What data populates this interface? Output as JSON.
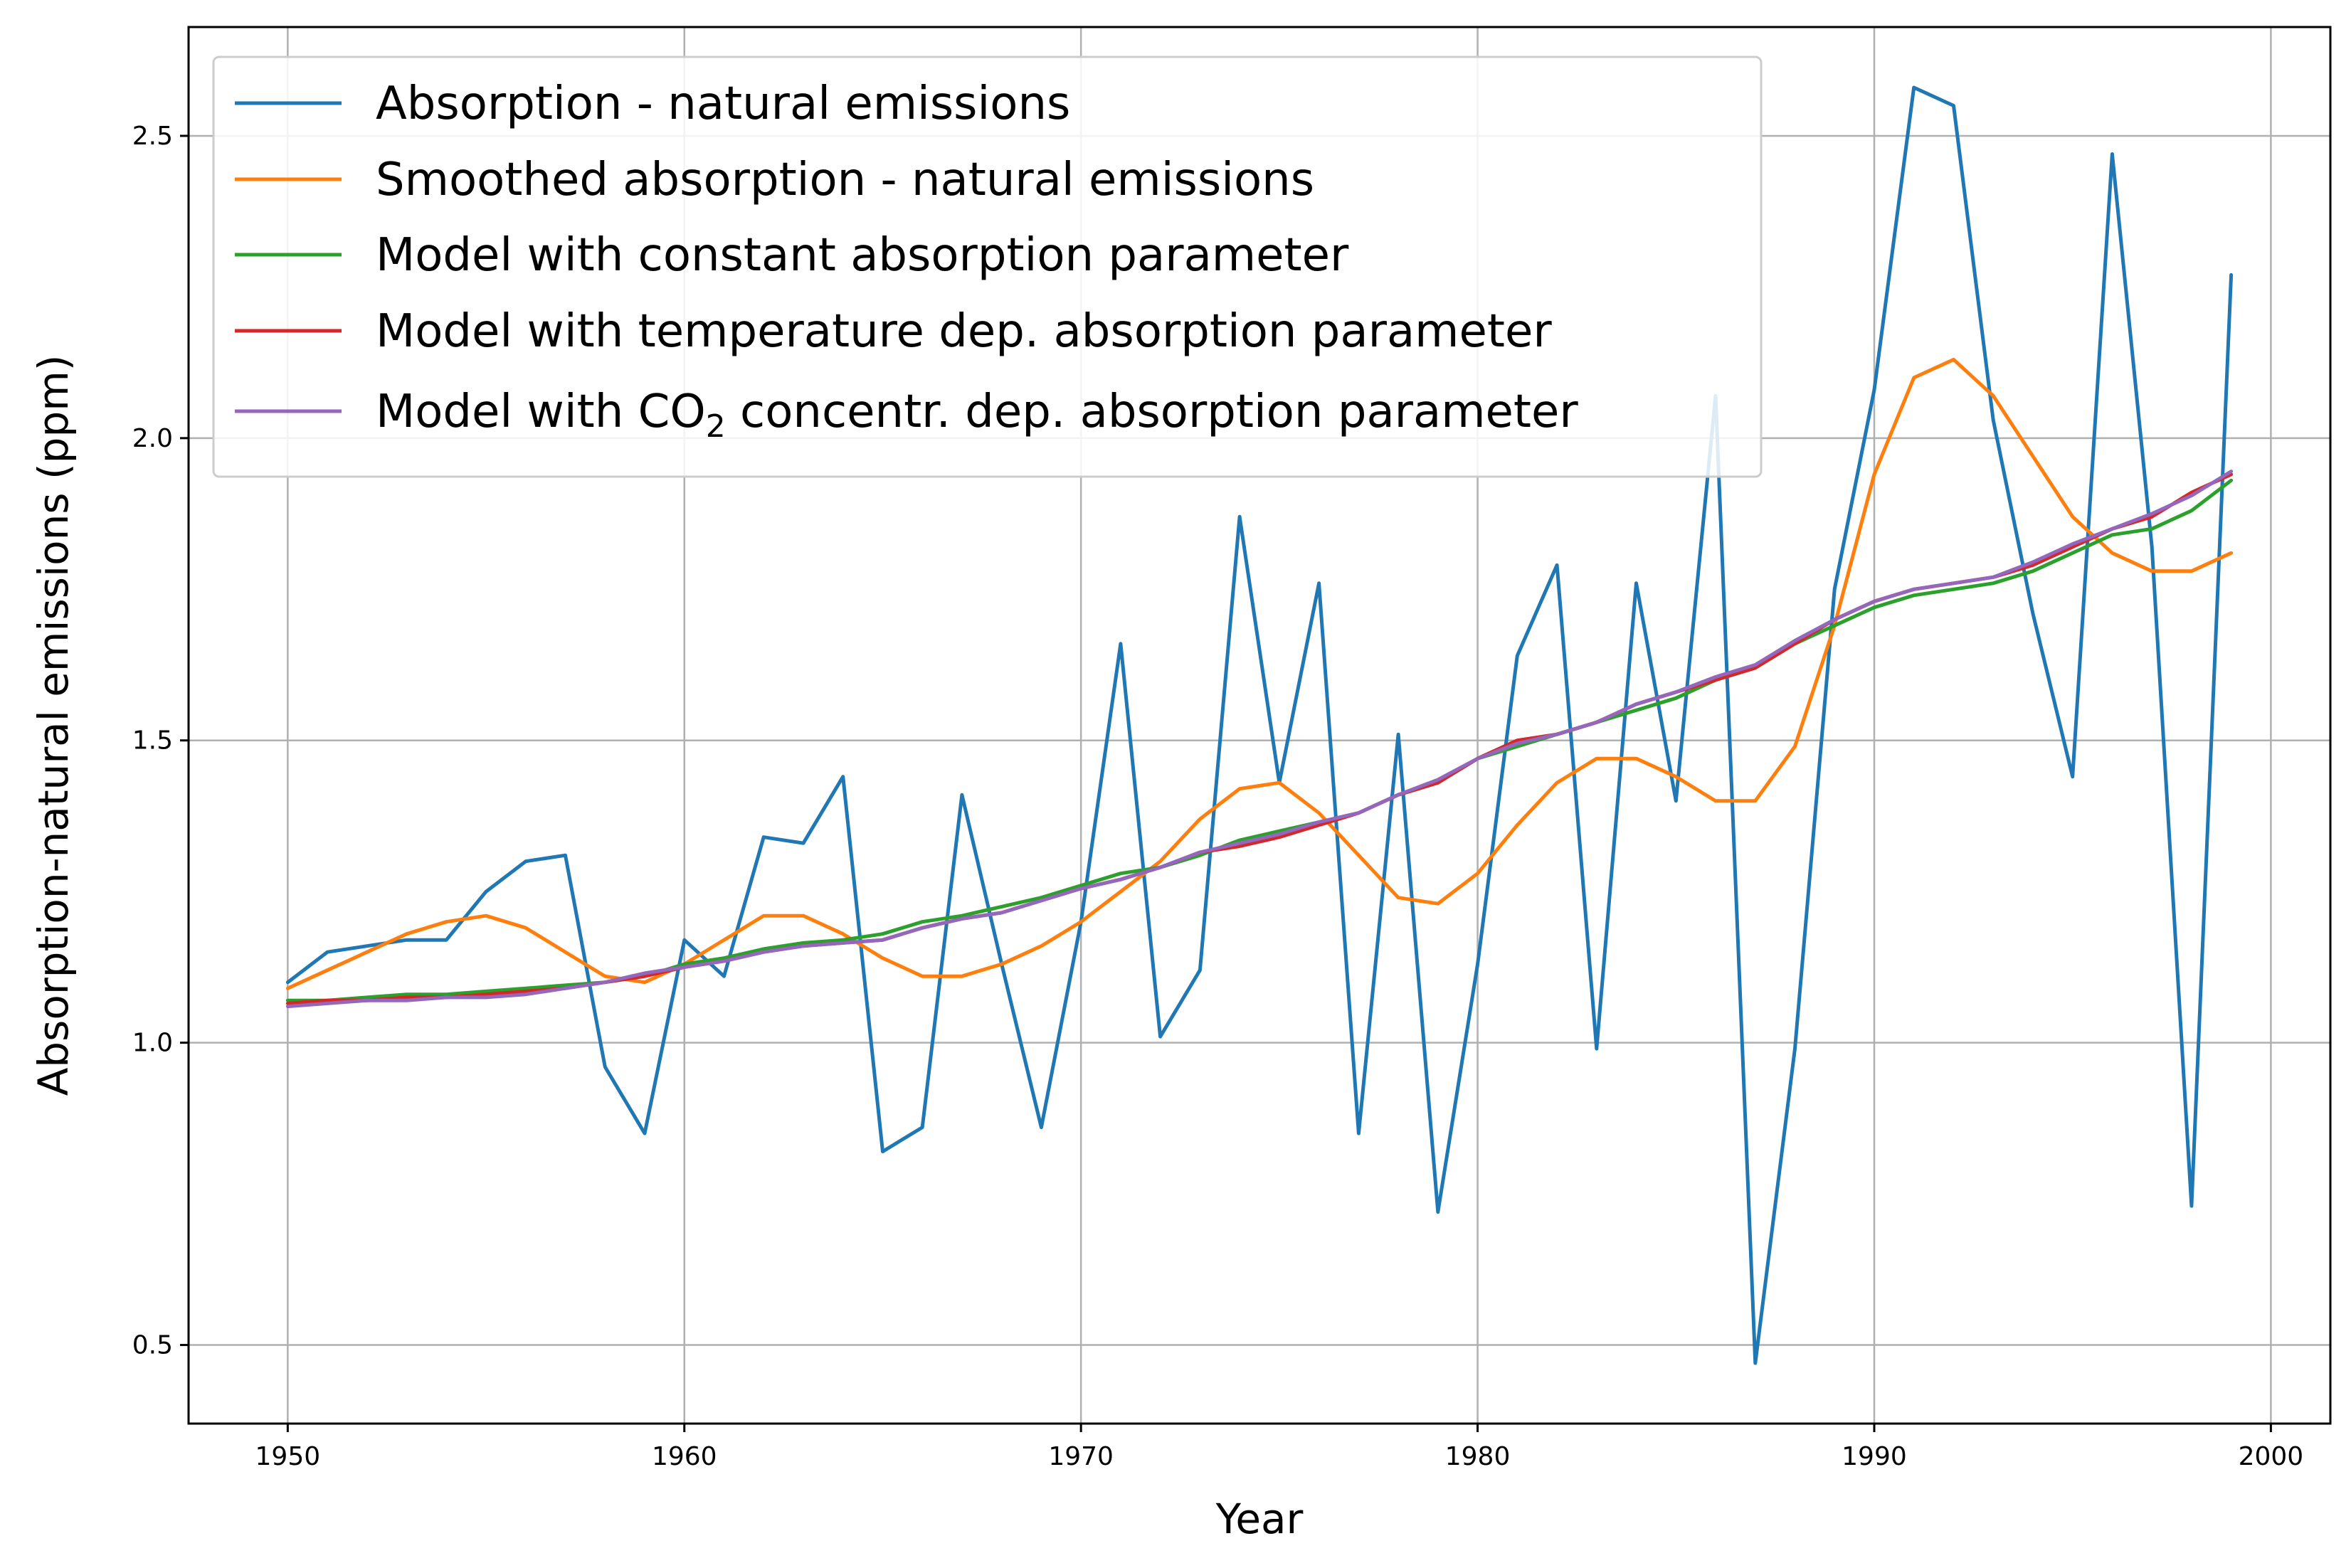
{
  "chart_data": {
    "type": "line",
    "title": "",
    "xlabel": "Year",
    "ylabel": "Absorption-natural emissions (ppm)",
    "xlim": [
      1947.5,
      2001.5
    ],
    "ylim": [
      0.37,
      2.68
    ],
    "grid": true,
    "legend_position": "top-left",
    "xticks": [
      1950,
      1960,
      1970,
      1980,
      1990,
      2000
    ],
    "xtick_labels": [
      "1950",
      "1960",
      "1970",
      "1980",
      "1990",
      "2000"
    ],
    "yticks": [
      0.5,
      1.0,
      1.5,
      2.0,
      2.5
    ],
    "ytick_labels": [
      "0.5",
      "1.0",
      "1.5",
      "2.0",
      "2.5"
    ],
    "x": [
      1950,
      1951,
      1952,
      1953,
      1954,
      1955,
      1956,
      1957,
      1958,
      1959,
      1960,
      1961,
      1962,
      1963,
      1964,
      1965,
      1966,
      1967,
      1968,
      1969,
      1970,
      1971,
      1972,
      1973,
      1974,
      1975,
      1976,
      1977,
      1978,
      1979,
      1980,
      1981,
      1982,
      1983,
      1984,
      1985,
      1986,
      1987,
      1988,
      1989,
      1990,
      1991,
      1992,
      1993,
      1994,
      1995,
      1996,
      1997,
      1998,
      1999
    ],
    "series": [
      {
        "name": "Absorption - natural emissions",
        "color": "#1f77b4",
        "values": [
          1.1,
          1.15,
          1.16,
          1.17,
          1.17,
          1.25,
          1.3,
          1.31,
          0.96,
          0.85,
          1.17,
          1.11,
          1.34,
          1.33,
          1.44,
          0.82,
          0.86,
          1.41,
          1.13,
          0.86,
          1.2,
          1.66,
          1.01,
          1.12,
          1.87,
          1.43,
          1.76,
          0.85,
          1.51,
          0.72,
          1.13,
          1.64,
          1.79,
          0.99,
          1.76,
          1.4,
          2.07,
          0.47,
          0.99,
          1.75,
          2.08,
          2.58,
          2.55,
          2.03,
          1.71,
          1.44,
          2.47,
          1.82,
          0.73,
          2.27
        ]
      },
      {
        "name": "Smoothed absorption - natural emissions",
        "color": "#ff7f0e",
        "values": [
          1.09,
          1.12,
          1.15,
          1.18,
          1.2,
          1.21,
          1.19,
          1.15,
          1.11,
          1.1,
          1.13,
          1.17,
          1.21,
          1.21,
          1.18,
          1.14,
          1.11,
          1.11,
          1.13,
          1.16,
          1.2,
          1.25,
          1.3,
          1.37,
          1.42,
          1.43,
          1.38,
          1.31,
          1.24,
          1.23,
          1.28,
          1.36,
          1.43,
          1.47,
          1.47,
          1.44,
          1.4,
          1.4,
          1.49,
          1.69,
          1.94,
          2.1,
          2.13,
          2.07,
          1.97,
          1.87,
          1.81,
          1.78,
          1.78,
          1.81
        ]
      },
      {
        "name": "Model with constant absorption parameter",
        "color": "#2ca02c",
        "values": [
          1.07,
          1.07,
          1.075,
          1.08,
          1.08,
          1.085,
          1.09,
          1.095,
          1.1,
          1.11,
          1.13,
          1.14,
          1.155,
          1.165,
          1.17,
          1.18,
          1.2,
          1.21,
          1.225,
          1.24,
          1.26,
          1.28,
          1.29,
          1.31,
          1.335,
          1.35,
          1.365,
          1.38,
          1.41,
          1.43,
          1.47,
          1.49,
          1.51,
          1.53,
          1.55,
          1.57,
          1.6,
          1.62,
          1.66,
          1.69,
          1.72,
          1.74,
          1.75,
          1.76,
          1.78,
          1.81,
          1.84,
          1.85,
          1.88,
          1.93
        ]
      },
      {
        "name": "Model with temperature dep. absorption parameter",
        "color": "#d62728",
        "values": [
          1.065,
          1.07,
          1.07,
          1.075,
          1.075,
          1.08,
          1.085,
          1.09,
          1.1,
          1.11,
          1.125,
          1.135,
          1.15,
          1.16,
          1.165,
          1.17,
          1.19,
          1.205,
          1.215,
          1.235,
          1.255,
          1.27,
          1.29,
          1.315,
          1.325,
          1.34,
          1.36,
          1.38,
          1.41,
          1.43,
          1.47,
          1.5,
          1.51,
          1.53,
          1.56,
          1.58,
          1.6,
          1.62,
          1.66,
          1.7,
          1.73,
          1.75,
          1.76,
          1.77,
          1.79,
          1.82,
          1.85,
          1.87,
          1.91,
          1.94
        ]
      },
      {
        "name": "Model with CO₂ concentr. dep. absorption parameter",
        "color": "#9467bd",
        "values": [
          1.06,
          1.065,
          1.07,
          1.07,
          1.075,
          1.075,
          1.08,
          1.09,
          1.1,
          1.115,
          1.125,
          1.135,
          1.15,
          1.16,
          1.165,
          1.17,
          1.19,
          1.205,
          1.215,
          1.235,
          1.255,
          1.27,
          1.29,
          1.315,
          1.33,
          1.345,
          1.365,
          1.38,
          1.41,
          1.435,
          1.47,
          1.495,
          1.51,
          1.53,
          1.56,
          1.58,
          1.605,
          1.625,
          1.665,
          1.7,
          1.73,
          1.75,
          1.76,
          1.77,
          1.795,
          1.825,
          1.85,
          1.875,
          1.905,
          1.945
        ]
      }
    ],
    "legend": {
      "entries": [
        {
          "text": "Absorption - natural emissions",
          "color": "#1f77b4"
        },
        {
          "text": "Smoothed absorption - natural emissions",
          "color": "#ff7f0e"
        },
        {
          "text": "Model with constant absorption parameter",
          "color": "#2ca02c"
        },
        {
          "text": "Model with temperature dep. absorption parameter",
          "color": "#d62728"
        },
        {
          "text_before": "Model with CO",
          "subscript": "2",
          "text_after": " concentr. dep. absorption parameter",
          "color": "#9467bd"
        }
      ]
    }
  }
}
